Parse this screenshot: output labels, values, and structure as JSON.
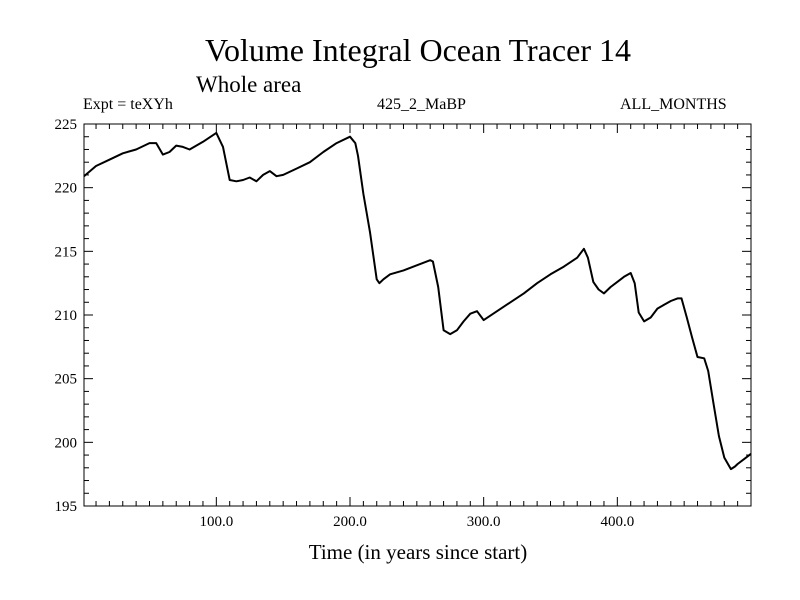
{
  "header": {
    "title": "Volume Integral Ocean Tracer 14",
    "subtitle": "Whole area",
    "expt": "Expt = teXYh",
    "case": "425_2_MaBP",
    "months": "ALL_MONTHS"
  },
  "chart_data": {
    "type": "line",
    "title": "Volume Integral Ocean Tracer 14",
    "subtitle": "Whole area",
    "xlabel": "Time (in years since start)",
    "ylabel": "",
    "xlim": [
      1,
      500
    ],
    "ylim": [
      195,
      225
    ],
    "x_ticks": [
      100,
      200,
      300,
      400
    ],
    "x_tick_labels": [
      "100.0",
      "200.0",
      "300.0",
      "400.0"
    ],
    "y_ticks": [
      195,
      200,
      205,
      210,
      215,
      220,
      225
    ],
    "y_tick_labels": [
      "195",
      "200",
      "205",
      "210",
      "215",
      "220",
      "225"
    ],
    "grid": false,
    "series": [
      {
        "x": [
          1,
          10,
          20,
          30,
          40,
          50,
          55,
          60,
          65,
          70,
          75,
          80,
          90,
          100,
          105,
          110,
          115,
          120,
          125,
          130,
          135,
          140,
          145,
          150,
          160,
          170,
          180,
          190,
          200,
          204,
          206,
          210,
          215,
          220,
          222,
          225,
          230,
          240,
          250,
          260,
          262,
          266,
          270,
          275,
          280,
          285,
          290,
          295,
          300,
          310,
          320,
          330,
          340,
          350,
          360,
          370,
          375,
          378,
          382,
          386,
          390,
          395,
          400,
          405,
          410,
          413,
          416,
          420,
          425,
          430,
          435,
          440,
          445,
          448,
          452,
          456,
          460,
          465,
          468,
          472,
          476,
          480,
          485,
          488,
          490,
          495,
          500
        ],
        "y": [
          220.9,
          221.7,
          222.2,
          222.7,
          223.0,
          223.5,
          223.5,
          222.6,
          222.8,
          223.3,
          223.2,
          223.0,
          223.6,
          224.3,
          223.2,
          220.6,
          220.5,
          220.6,
          220.8,
          220.5,
          221.0,
          221.3,
          220.9,
          221.0,
          221.5,
          222.0,
          222.8,
          223.5,
          224.0,
          223.5,
          222.5,
          219.5,
          216.5,
          212.8,
          212.5,
          212.8,
          213.2,
          213.5,
          213.9,
          214.3,
          214.2,
          212.2,
          208.8,
          208.5,
          208.8,
          209.5,
          210.1,
          210.3,
          209.6,
          210.3,
          211.0,
          211.7,
          212.5,
          213.2,
          213.8,
          214.5,
          215.2,
          214.5,
          212.6,
          212.0,
          211.7,
          212.2,
          212.6,
          213.0,
          213.3,
          212.5,
          210.2,
          209.5,
          209.8,
          210.5,
          210.8,
          211.1,
          211.3,
          211.3,
          209.8,
          208.2,
          206.7,
          206.6,
          205.6,
          203.0,
          200.5,
          198.8,
          197.9,
          198.1,
          198.3,
          198.7,
          199.1
        ]
      }
    ]
  }
}
